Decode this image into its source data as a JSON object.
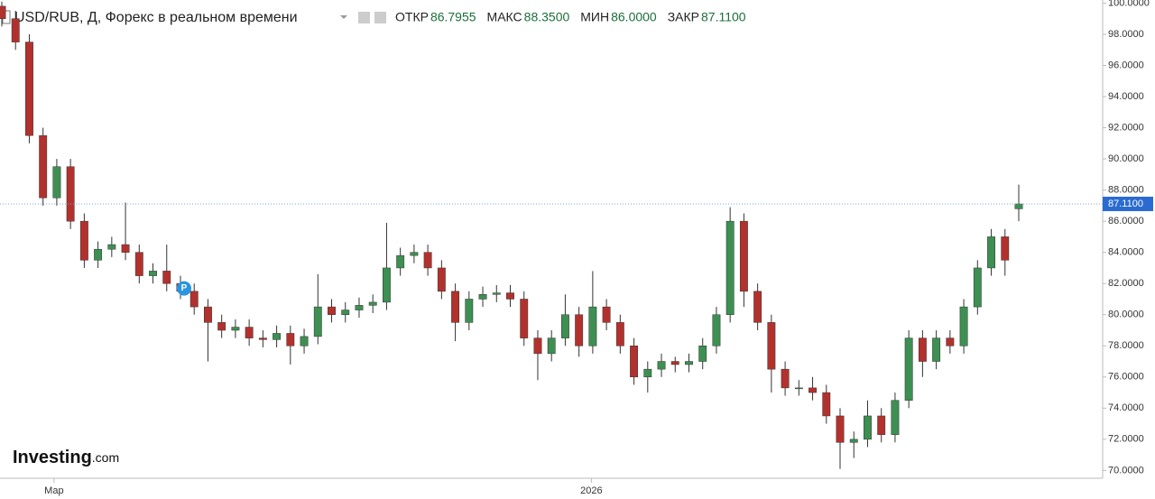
{
  "chart_data": {
    "type": "candlestick",
    "title": "USD/RUB, Д, Форекс в реальном времени",
    "stats": [
      {
        "label": "ОТКР",
        "value": "86.7955"
      },
      {
        "label": "МАКС",
        "value": "88.3500"
      },
      {
        "label": "МИН",
        "value": "86.0000"
      },
      {
        "label": "ЗАКР",
        "value": "87.1100"
      }
    ],
    "brand": {
      "name": "Investing",
      "suffix": ".com"
    },
    "marker": {
      "label": "P",
      "index": 13
    },
    "up_color": "#3d8f52",
    "down_color": "#b3312d",
    "open": [
      99.8,
      99,
      97.5,
      91.5,
      87.5,
      89.5,
      86,
      83.5,
      84.2,
      84.5,
      84,
      82.5,
      82.8,
      82,
      81.5,
      80.5,
      79.5,
      79,
      79.2,
      78.5,
      78.4,
      78.8,
      78,
      78.6,
      80.5,
      80,
      80.3,
      80.6,
      80.8,
      83,
      83.8,
      84,
      83,
      81.5,
      79.5,
      81,
      81.3,
      81.4,
      81,
      78.5,
      77.5,
      78.5,
      80,
      78,
      80.5,
      79.5,
      78,
      76,
      76.5,
      77,
      76.8,
      77,
      78,
      80,
      86,
      81.5,
      79.5,
      76.5,
      75.3,
      75.3,
      75,
      73.5,
      71.8,
      72,
      73.5,
      72.3,
      74.5,
      78.5,
      77,
      78.5,
      78,
      80.5,
      83,
      85,
      86.7955
    ],
    "high": [
      100.1,
      99.5,
      98,
      92,
      90,
      90,
      86.5,
      84.7,
      85,
      87.2,
      84.5,
      83.3,
      84.5,
      82.5,
      82,
      81,
      80,
      79.7,
      79.7,
      79,
      79.3,
      79.3,
      79.1,
      82.6,
      81,
      80.8,
      81.1,
      81.3,
      85.9,
      84.3,
      84.5,
      84.5,
      83.5,
      82,
      81.5,
      81.8,
      81.9,
      81.9,
      81.5,
      79,
      79,
      81.3,
      80.5,
      82.8,
      81,
      80,
      78.5,
      77,
      77.5,
      77.3,
      77.5,
      78.5,
      80.5,
      86.9,
      86.5,
      82,
      80,
      77,
      75.8,
      76,
      75.5,
      74,
      72.5,
      74.5,
      74,
      75,
      79,
      79,
      79,
      79,
      81,
      83.5,
      85.5,
      85.5,
      88.35
    ],
    "low": [
      98.5,
      97,
      91,
      87,
      87,
      85.5,
      83,
      83,
      83.7,
      83.5,
      82,
      82,
      81.5,
      81,
      80,
      77,
      78.5,
      78.5,
      78,
      77.9,
      77.9,
      76.8,
      77.5,
      78.1,
      79.5,
      79.5,
      79.8,
      80.1,
      80.3,
      82.5,
      83.3,
      82.5,
      81,
      78.3,
      79,
      80.5,
      80.8,
      80.5,
      78,
      75.8,
      77,
      78,
      77.3,
      77.5,
      79,
      77.5,
      75.5,
      75,
      76,
      76.3,
      76.3,
      76.5,
      77.5,
      79.5,
      80.5,
      79,
      75,
      74.8,
      74.8,
      74.5,
      73,
      70.1,
      70.8,
      71.5,
      71.8,
      71.8,
      74,
      76,
      76.5,
      77.5,
      77.5,
      80,
      82.5,
      82.5,
      86
    ],
    "close": [
      99,
      97.5,
      91.5,
      87.5,
      89.5,
      86,
      83.5,
      84.2,
      84.5,
      84,
      82.5,
      82.8,
      82,
      81.5,
      80.5,
      79.5,
      79,
      79.2,
      78.5,
      78.4,
      78.8,
      78,
      78.6,
      80.5,
      80,
      80.3,
      80.6,
      80.8,
      83,
      83.8,
      84,
      83,
      81.5,
      79.5,
      81,
      81.3,
      81.4,
      81,
      78.5,
      77.5,
      78.5,
      80,
      78,
      80.5,
      79.5,
      78,
      76,
      76.5,
      77,
      76.8,
      77,
      78,
      80,
      86,
      81.5,
      79.5,
      76.5,
      75.3,
      75.3,
      75,
      73.5,
      71.8,
      72,
      73.5,
      72.3,
      74.5,
      78.5,
      77,
      78.5,
      78,
      80.5,
      83,
      85,
      83.5,
      87.11
    ],
    "xticks": [
      {
        "value": 3.8,
        "label": "Мар"
      },
      {
        "value": 42.9,
        "label": "2026"
      }
    ],
    "ylim": [
      69.5,
      100.2
    ],
    "yticks": [
      {
        "value": 70,
        "label": "70.0000"
      },
      {
        "value": 72,
        "label": "72.0000"
      },
      {
        "value": 74,
        "label": "74.0000"
      },
      {
        "value": 76,
        "label": "76.0000"
      },
      {
        "value": 78,
        "label": "78.0000"
      },
      {
        "value": 80,
        "label": "80.0000"
      },
      {
        "value": 82,
        "label": "82.0000"
      },
      {
        "value": 84,
        "label": "84.0000"
      },
      {
        "value": 86,
        "label": "86.0000"
      },
      {
        "value": 88,
        "label": "88.0000"
      },
      {
        "value": 90,
        "label": "90.0000"
      },
      {
        "value": 92,
        "label": "92.0000"
      },
      {
        "value": 94,
        "label": "94.0000"
      },
      {
        "value": 96,
        "label": "96.0000"
      },
      {
        "value": 98,
        "label": "98.0000"
      },
      {
        "value": 100,
        "label": "100.0000"
      }
    ],
    "last_price": {
      "value": 87.11,
      "label": "87.1100"
    }
  }
}
